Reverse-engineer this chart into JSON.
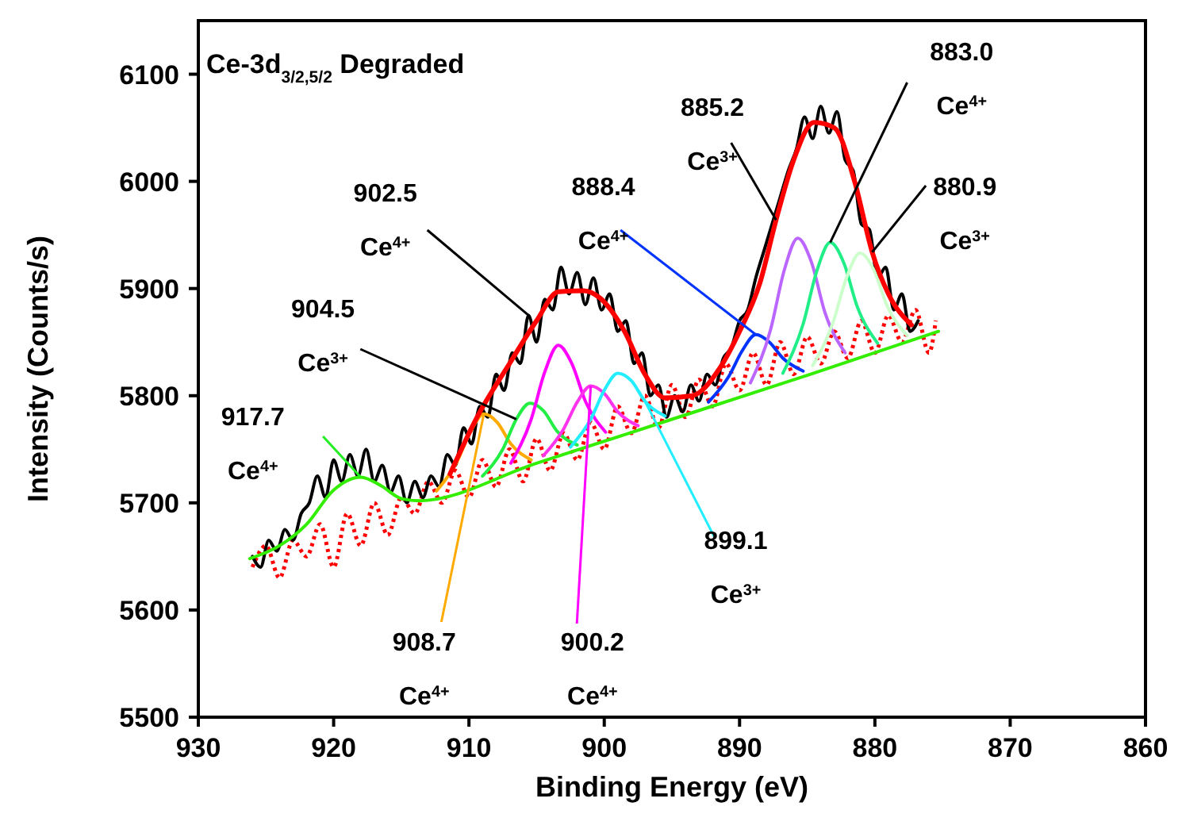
{
  "chart_data": {
    "type": "line",
    "title": "Ce-3d$_{3/2,5/2}$ Degraded",
    "xlabel": "Binding Energy (eV)",
    "ylabel": "Intensity (Counts/s)",
    "xlim": [
      930,
      860
    ],
    "xticks": [
      930,
      920,
      910,
      900,
      890,
      880,
      870,
      860
    ],
    "ylim": [
      5500,
      6150
    ],
    "yticks": [
      5500,
      5600,
      5700,
      5800,
      5900,
      6000,
      6100
    ],
    "marker": "none",
    "series": [
      {
        "color": "#ff0000",
        "line_style": "dotted",
        "x": [
          926,
          925,
          924,
          923,
          922,
          921,
          920,
          919,
          918,
          917,
          916,
          915,
          914,
          913,
          912,
          911,
          910,
          909,
          908,
          907,
          906,
          905,
          904,
          903,
          902,
          901,
          900,
          899,
          898,
          897,
          896,
          895,
          894,
          893,
          892,
          891,
          890,
          889,
          888,
          887,
          886,
          885,
          884,
          883,
          882,
          881,
          880,
          879,
          878,
          877,
          876,
          875.5
        ],
        "values": [
          5640,
          5660,
          5630,
          5665,
          5650,
          5680,
          5640,
          5690,
          5660,
          5700,
          5670,
          5705,
          5690,
          5720,
          5700,
          5730,
          5705,
          5740,
          5715,
          5750,
          5720,
          5760,
          5730,
          5765,
          5740,
          5775,
          5750,
          5790,
          5765,
          5800,
          5770,
          5810,
          5780,
          5815,
          5790,
          5830,
          5805,
          5840,
          5810,
          5850,
          5820,
          5855,
          5830,
          5860,
          5835,
          5870,
          5840,
          5875,
          5850,
          5880,
          5840,
          5870
        ]
      },
      {
        "color": "#000000",
        "line_style": "solid",
        "x": [
          926,
          925.4,
          924.8,
          924.2,
          923.6,
          923,
          922.4,
          921.8,
          921.2,
          920.6,
          920,
          919.4,
          918.8,
          918.2,
          917.6,
          917,
          916.4,
          915.8,
          915.2,
          914.6,
          914,
          913.4,
          912.8,
          912.2,
          911.6,
          911,
          910.4,
          909.8,
          909.2,
          908.6,
          908,
          907.4,
          906.8,
          906.2,
          905.6,
          905,
          904.4,
          903.8,
          903.2,
          902.6,
          902,
          901.4,
          900.8,
          900.2,
          899.6,
          899,
          898.4,
          897.8,
          897.2,
          896.6,
          896,
          895.4,
          894.8,
          894.2,
          893.6,
          893,
          892.4,
          891.8,
          891.2,
          890.6,
          890,
          889.4,
          888.8,
          888.2,
          887.6,
          887,
          886.4,
          885.8,
          885.2,
          884.6,
          884,
          883.4,
          882.8,
          882.2,
          881.6,
          881,
          880.4,
          879.8,
          879.2,
          878.6,
          878,
          877.4,
          876.8
        ],
        "values": [
          5650,
          5640,
          5665,
          5655,
          5675,
          5665,
          5690,
          5700,
          5725,
          5705,
          5740,
          5720,
          5745,
          5725,
          5750,
          5720,
          5735,
          5710,
          5725,
          5700,
          5720,
          5705,
          5725,
          5715,
          5745,
          5735,
          5770,
          5755,
          5790,
          5780,
          5820,
          5805,
          5840,
          5830,
          5875,
          5850,
          5890,
          5880,
          5920,
          5895,
          5915,
          5885,
          5910,
          5880,
          5895,
          5860,
          5870,
          5830,
          5840,
          5800,
          5810,
          5780,
          5800,
          5785,
          5810,
          5795,
          5820,
          5810,
          5835,
          5845,
          5870,
          5880,
          5910,
          5935,
          5960,
          5985,
          6010,
          6030,
          6060,
          6040,
          6070,
          6045,
          6065,
          6020,
          6010,
          5960,
          5955,
          5910,
          5920,
          5880,
          5895,
          5860,
          5870
        ]
      },
      {
        "color": "#ffaa00",
        "line_style": "solid",
        "x": [
          912.4,
          910.9,
          909.9,
          908.9,
          907.9,
          906.9,
          905.4
        ],
        "values": [
          5711,
          5738,
          5766,
          5783,
          5775,
          5755,
          5740
        ]
      },
      {
        "color": "#22ee44",
        "line_style": "solid",
        "x": [
          909,
          907.5,
          906.5,
          905.5,
          904.5,
          903.5,
          902
        ],
        "values": [
          5725,
          5750,
          5778,
          5793,
          5786,
          5767,
          5754
        ]
      },
      {
        "color": "#ff00ff",
        "line_style": "solid",
        "x": [
          906.9,
          905.4,
          904.4,
          903.4,
          902.4,
          901.4,
          899.9
        ],
        "values": [
          5737,
          5778,
          5822,
          5847,
          5830,
          5795,
          5766
        ]
      },
      {
        "color": "#ff33ee",
        "line_style": "solid",
        "x": [
          904.5,
          903,
          902,
          901,
          900,
          899,
          897.5
        ],
        "values": [
          5744,
          5769,
          5794,
          5809,
          5802,
          5785,
          5772
        ]
      },
      {
        "color": "#22eeff",
        "line_style": "solid",
        "x": [
          902.5,
          901,
          900,
          899,
          898,
          897,
          895.5
        ],
        "values": [
          5752,
          5778,
          5805,
          5821,
          5814,
          5795,
          5781
        ]
      },
      {
        "color": "#0033ff",
        "line_style": "solid",
        "x": [
          892.3,
          890.8,
          889.8,
          888.8,
          887.8,
          886.8,
          885.3
        ],
        "values": [
          5794,
          5818,
          5842,
          5857,
          5850,
          5835,
          5823
        ]
      },
      {
        "color": "#bb66ff",
        "line_style": "solid",
        "x": [
          889.2,
          887.7,
          886.7,
          885.7,
          884.7,
          883.7,
          882.2
        ],
        "values": [
          5812,
          5862,
          5917,
          5947,
          5925,
          5878,
          5840
        ]
      },
      {
        "color": "#22ee88",
        "line_style": "solid",
        "x": [
          886.8,
          885.3,
          884.3,
          883.3,
          882.3,
          881.3,
          879.8
        ],
        "values": [
          5821,
          5867,
          5916,
          5943,
          5924,
          5883,
          5849
        ]
      },
      {
        "color": "#ccffcc",
        "line_style": "solid",
        "x": [
          884.6,
          883.1,
          882.1,
          881.1,
          880.1,
          879.1,
          877.6
        ],
        "values": [
          5828,
          5868,
          5910,
          5933,
          5918,
          5884,
          5856
        ]
      },
      {
        "color": "#33ee00",
        "line_style": "solid",
        "x": [
          926.2,
          924,
          922,
          920,
          918,
          916.5,
          915,
          913.7,
          905,
          895,
          885,
          875.3
        ],
        "values": [
          5648,
          5660,
          5680,
          5712,
          5724,
          5716,
          5704,
          5702,
          5737,
          5778,
          5819,
          5860
        ]
      },
      {
        "color": "#ff0000",
        "line_style": "solid",
        "x": [
          911.4,
          909.4,
          907,
          905,
          903.4,
          901.5,
          900.3,
          898.5,
          897,
          895.5,
          893.5,
          891.5,
          890,
          888.5,
          887.3,
          886,
          884.5,
          883,
          881.5,
          880.2,
          879,
          877.3
        ],
        "values": [
          5727,
          5780,
          5830,
          5870,
          5897,
          5898,
          5891,
          5860,
          5820,
          5798,
          5800,
          5825,
          5860,
          5905,
          5964,
          6020,
          6055,
          6050,
          6000,
          5934,
          5895,
          5866
        ]
      }
    ],
    "annotations": [
      {
        "text": "917.7\nCe$^{4+}$",
        "x": 918,
        "y": 5724
      },
      {
        "text": "904.5\nCe$^{3+}$",
        "x": 906.5,
        "y": 5778
      },
      {
        "text": "902.5\nCe$^{4+}$",
        "x": 905.6,
        "y": 5875
      },
      {
        "text": "908.7\nCe$^{4+}$",
        "x": 908.9,
        "y": 5783
      },
      {
        "text": "900.2\nCe$^{4+}$",
        "x": 901,
        "y": 5809
      },
      {
        "text": "899.1\nCe$^{3+}$",
        "x": 897,
        "y": 5795
      },
      {
        "text": "888.4\nCe$^{4+}$",
        "x": 888.8,
        "y": 5857
      },
      {
        "text": "885.2\nCe$^{3+}$",
        "x": 887.3,
        "y": 5964
      },
      {
        "text": "883.0\nCe$^{4+}$",
        "x": 883.3,
        "y": 5943
      },
      {
        "text": "880.9\nCe$^{3+}$",
        "x": 880.2,
        "y": 5934
      }
    ]
  }
}
